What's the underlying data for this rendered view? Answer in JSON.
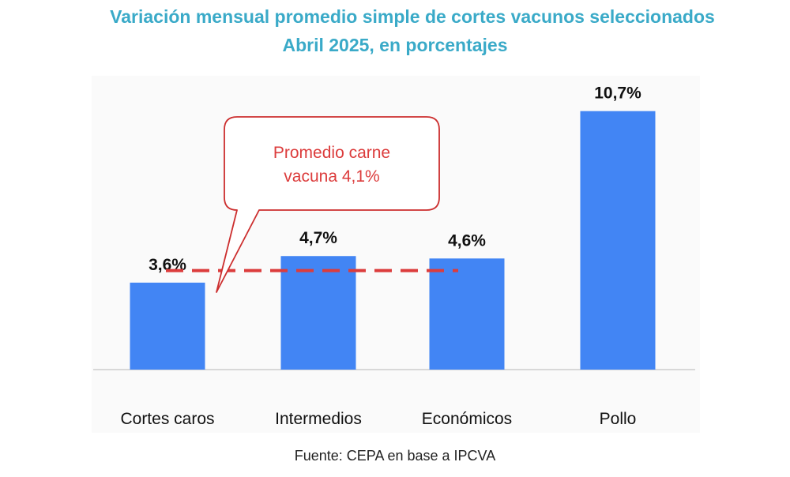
{
  "chart_data": {
    "type": "bar",
    "title": "Variación mensual promedio simple de cortes vacunos seleccionados",
    "subtitle": "Abril 2025, en porcentajes",
    "categories": [
      "Cortes caros",
      "Intermedios",
      "Económicos",
      "Pollo"
    ],
    "values": [
      3.6,
      4.7,
      4.6,
      10.7
    ],
    "value_labels": [
      "3,6%",
      "4,7%",
      "4,6%",
      "10,7%"
    ],
    "bar_color": "#4285f4",
    "ylim": [
      0,
      11.9
    ],
    "grid": false,
    "reference_line": {
      "value": 4.1,
      "label_line1": "Promedio carne",
      "label_line2": "vacuna 4,1%",
      "color": "#dc3c3c"
    },
    "source": "Fuente: CEPA en base a IPCVA"
  }
}
